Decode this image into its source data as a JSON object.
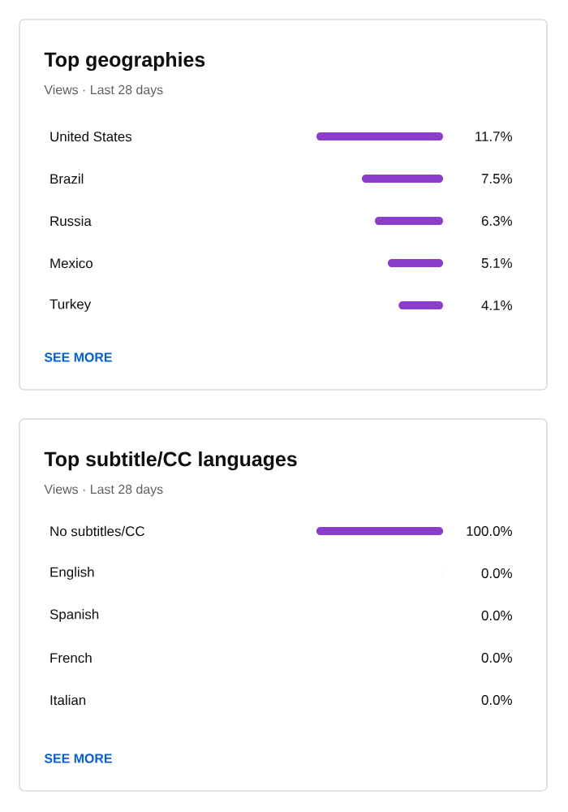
{
  "chart_data": [
    {
      "type": "bar",
      "orientation": "horizontal",
      "title": "Top geographies",
      "subtitle": "Views · Last 28 days",
      "categories": [
        "United States",
        "Brazil",
        "Russia",
        "Mexico",
        "Turkey"
      ],
      "values": [
        11.7,
        7.5,
        6.3,
        5.1,
        4.1
      ],
      "value_labels": [
        "11.7%",
        "7.5%",
        "6.3%",
        "5.1%",
        "4.1%"
      ],
      "color": "#8a3ccb",
      "xlim": [
        11.7,
        0
      ],
      "tick_labels": "y",
      "annotations": [
        "SEE MORE"
      ]
    },
    {
      "type": "bar",
      "orientation": "horizontal",
      "title": "Top subtitle/CC languages",
      "subtitle": "Views · Last 28 days",
      "categories": [
        "No subtitles/CC",
        "English",
        "Spanish",
        "French",
        "Italian"
      ],
      "values": [
        100.0,
        0.04,
        0,
        0,
        0
      ],
      "value_labels": [
        "100.0%",
        "0.0%",
        "0.0%",
        "0.0%",
        "0.0%"
      ],
      "color": "#8a3ccb",
      "xlim": [
        100,
        0
      ],
      "tick_labels": "y",
      "annotations": [
        "SEE MORE"
      ]
    }
  ]
}
